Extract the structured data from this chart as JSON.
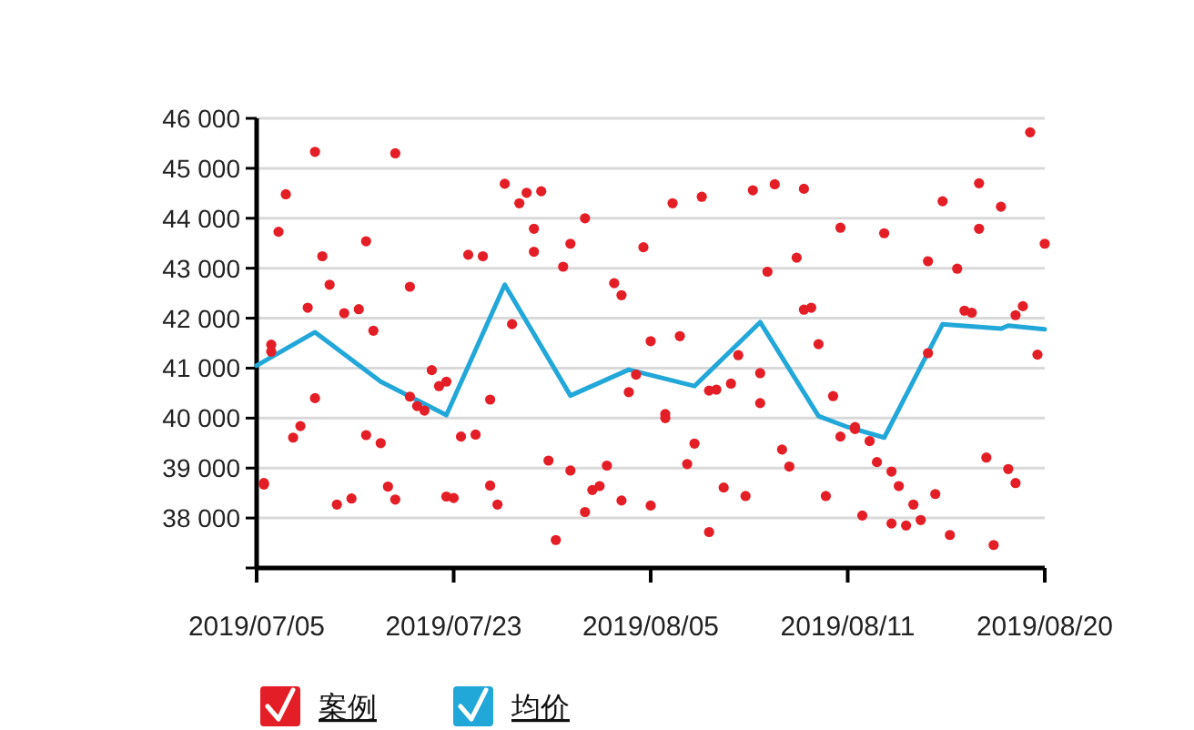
{
  "chart_data": {
    "type": "scatter",
    "categories": [
      "2019/07/05",
      null,
      null,
      null,
      null,
      null,
      null,
      null,
      null,
      null,
      null,
      null,
      null,
      null,
      null,
      null,
      null,
      null,
      null,
      null,
      null,
      null,
      null,
      null,
      null,
      null,
      null,
      "2019/07/23",
      null,
      null,
      null,
      null,
      null,
      null,
      null,
      null,
      null,
      null,
      null,
      null,
      null,
      null,
      null,
      null,
      null,
      null,
      null,
      null,
      null,
      null,
      null,
      null,
      null,
      null,
      "2019/08/05",
      null,
      null,
      null,
      null,
      null,
      null,
      null,
      null,
      null,
      null,
      null,
      null,
      null,
      null,
      null,
      null,
      null,
      null,
      null,
      null,
      null,
      null,
      null,
      null,
      null,
      null,
      "2019/08/11",
      null,
      null,
      null,
      null,
      null,
      null,
      null,
      null,
      null,
      null,
      null,
      null,
      null,
      null,
      null,
      null,
      null,
      null,
      null,
      null,
      null,
      null,
      null,
      null,
      null,
      null,
      "2019/08/20"
    ],
    "ylim": [
      37000,
      46000
    ],
    "yticks": [
      {
        "value": 37000,
        "label": null
      },
      {
        "value": 38000,
        "label": "38 000"
      },
      {
        "value": 39000,
        "label": "39 000"
      },
      {
        "value": 40000,
        "label": "40 000"
      },
      {
        "value": 41000,
        "label": "41 000"
      },
      {
        "value": 42000,
        "label": "42 000"
      },
      {
        "value": 43000,
        "label": "43 000"
      },
      {
        "value": 44000,
        "label": "44 000"
      },
      {
        "value": 45000,
        "label": "45 000"
      },
      {
        "value": 46000,
        "label": "46 000"
      }
    ],
    "grid": "y",
    "legend": "bottom left",
    "series": [
      {
        "name": "案例",
        "marker": "circle",
        "color": "#e41e26",
        "values": [
          null,
          38700,
          41470,
          43730,
          44480,
          39610,
          39840,
          42210,
          45330,
          43240,
          42670,
          38270,
          42100,
          38390,
          42180,
          43540,
          41750,
          39500,
          38630,
          45300,
          null,
          42630,
          40240,
          40150,
          40960,
          40640,
          40730,
          38400,
          39630,
          43270,
          39670,
          43240,
          40370,
          38270,
          44690,
          41880,
          44300,
          44510,
          43790,
          44540,
          39150,
          37560,
          43030,
          43490,
          null,
          44000,
          38560,
          38640,
          39050,
          42700,
          42460,
          40520,
          40870,
          43420,
          38250,
          null,
          40000,
          44300,
          41640,
          39080,
          39490,
          44430,
          40550,
          40570,
          38610,
          40690,
          41260,
          38440,
          44560,
          40900,
          42930,
          44680,
          39370,
          39030,
          43210,
          44590,
          42210,
          41480,
          38440,
          40440,
          43810,
          null,
          39780,
          38050,
          39540,
          39120,
          43700,
          38930,
          38640,
          37850,
          38270,
          37960,
          43140,
          38480,
          44340,
          37660,
          42990,
          42150,
          42110,
          44700,
          39210,
          37460,
          44230,
          38980,
          42060,
          42240,
          45720,
          41270,
          43490
        ]
      },
      {
        "marker": "circle",
        "color": "#e41e26",
        "values": [
          null,
          38670,
          41330,
          null,
          null,
          null,
          null,
          null,
          40400,
          null,
          null,
          null,
          null,
          null,
          null,
          39660,
          null,
          null,
          null,
          38370,
          null,
          40430,
          null,
          null,
          null,
          null,
          38430,
          null,
          null,
          null,
          null,
          null,
          38650,
          null,
          null,
          null,
          null,
          null,
          43330,
          null,
          null,
          null,
          null,
          38950,
          null,
          38120,
          null,
          null,
          null,
          null,
          38350,
          null,
          null,
          null,
          41540,
          null,
          40080,
          null,
          null,
          null,
          null,
          null,
          37720,
          null,
          null,
          null,
          null,
          null,
          null,
          40300,
          null,
          null,
          null,
          null,
          null,
          42170,
          null,
          null,
          null,
          null,
          39630,
          null,
          39820,
          null,
          null,
          null,
          null,
          37890,
          null,
          null,
          null,
          null,
          41300,
          null,
          null,
          null,
          null,
          null,
          null,
          43790,
          null,
          null,
          null,
          null,
          38700,
          null,
          null,
          null,
          null
        ]
      },
      {
        "name": "均价",
        "type": "line",
        "marker": "none",
        "line_style": "solid",
        "color": "#22a7d9",
        "values": [
          41050,
          null,
          null,
          null,
          null,
          null,
          null,
          null,
          41720,
          null,
          null,
          null,
          null,
          null,
          null,
          null,
          null,
          40730,
          null,
          null,
          null,
          null,
          null,
          null,
          null,
          null,
          40060,
          null,
          null,
          null,
          null,
          null,
          null,
          null,
          42670,
          null,
          null,
          null,
          null,
          null,
          null,
          null,
          null,
          40450,
          null,
          null,
          null,
          null,
          null,
          null,
          null,
          40970,
          null,
          null,
          null,
          null,
          null,
          null,
          null,
          null,
          40640,
          null,
          null,
          null,
          null,
          null,
          null,
          null,
          null,
          41920,
          null,
          null,
          null,
          null,
          null,
          null,
          null,
          40040,
          null,
          null,
          null,
          39820,
          null,
          null,
          null,
          null,
          39610,
          null,
          null,
          null,
          null,
          null,
          null,
          null,
          41880,
          null,
          null,
          null,
          null,
          null,
          null,
          null,
          41790,
          41850,
          null,
          null,
          null,
          null,
          41780
        ]
      }
    ]
  }
}
